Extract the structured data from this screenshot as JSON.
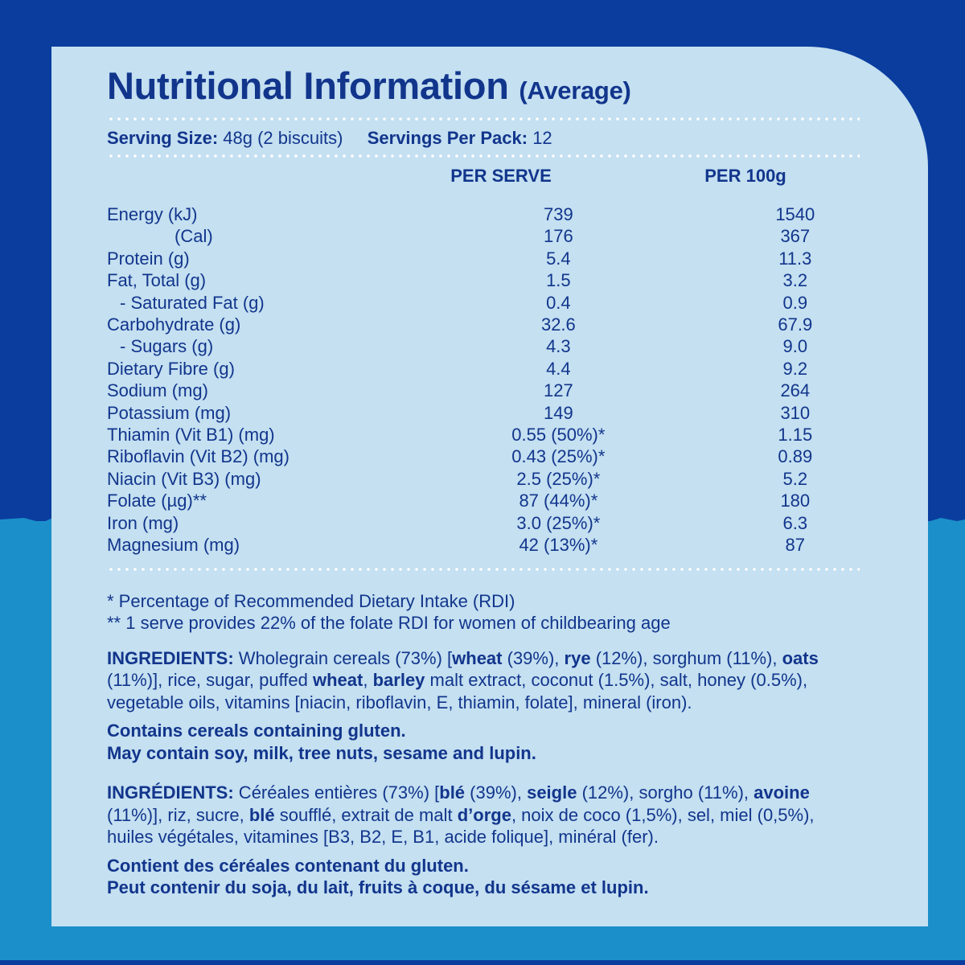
{
  "title": {
    "main": "Nutritional Information",
    "sub": "(Average)"
  },
  "serving": {
    "size_label": "Serving Size:",
    "size_value": "48g (2 biscuits)",
    "per_pack_label": "Servings Per Pack:",
    "per_pack_value": "12"
  },
  "columns": {
    "per_serve": "PER SERVE",
    "per_100g": "PER 100g"
  },
  "rows": [
    {
      "label": "Energy (kJ)",
      "per_serve": "739",
      "per_100g": "1540"
    },
    {
      "label": "(Cal)",
      "per_serve": "176",
      "per_100g": "367"
    },
    {
      "label": "Protein (g)",
      "per_serve": "5.4",
      "per_100g": "11.3"
    },
    {
      "label": "Fat, Total (g)",
      "per_serve": "1.5",
      "per_100g": "3.2"
    },
    {
      "label": "- Saturated Fat (g)",
      "per_serve": "0.4",
      "per_100g": "0.9"
    },
    {
      "label": "Carbohydrate (g)",
      "per_serve": "32.6",
      "per_100g": "67.9"
    },
    {
      "label": "- Sugars (g)",
      "per_serve": "4.3",
      "per_100g": "9.0"
    },
    {
      "label": "Dietary Fibre (g)",
      "per_serve": "4.4",
      "per_100g": "9.2"
    },
    {
      "label": "Sodium (mg)",
      "per_serve": "127",
      "per_100g": "264"
    },
    {
      "label": "Potassium (mg)",
      "per_serve": "149",
      "per_100g": "310"
    },
    {
      "label": "Thiamin (Vit B1) (mg)",
      "per_serve": "0.55 (50%)*",
      "per_100g": "1.15"
    },
    {
      "label": "Riboflavin (Vit B2) (mg)",
      "per_serve": "0.43 (25%)*",
      "per_100g": "0.89"
    },
    {
      "label": "Niacin (Vit B3) (mg)",
      "per_serve": "2.5 (25%)*",
      "per_100g": "5.2"
    },
    {
      "label": "Folate (µg)**",
      "per_serve": "87 (44%)*",
      "per_100g": "180"
    },
    {
      "label": "Iron (mg)",
      "per_serve": "3.0 (25%)*",
      "per_100g": "6.3"
    },
    {
      "label": "Magnesium (mg)",
      "per_serve": "42 (13%)*",
      "per_100g": "87"
    }
  ],
  "footnotes": [
    "* Percentage of Recommended Dietary Intake (RDI)",
    "** 1 serve provides 22% of the folate RDI for women of childbearing age"
  ],
  "ingredients_en": {
    "heading": "INGREDIENTS:",
    "t1": " Wholegrain cereals (73%) [",
    "b1": "wheat",
    "t2": " (39%), ",
    "b2": "rye",
    "t3": " (12%), sorghum (11%), ",
    "b3": "oats",
    "t4": " (11%)], rice, sugar, puffed ",
    "b4": "wheat",
    "t5": ", ",
    "b5": "barley",
    "t6": " malt extract, coconut (1.5%), salt, honey (0.5%), vegetable oils, vitamins [niacin, riboflavin, E, thiamin, folate], mineral (iron)."
  },
  "allergens_en": [
    "Contains cereals containing gluten.",
    "May contain soy, milk, tree nuts, sesame and lupin."
  ],
  "ingredients_fr": {
    "heading": "INGRÉDIENTS:",
    "t1": " Céréales entières (73%) [",
    "b1": "blé",
    "t2": " (39%), ",
    "b2": "seigle",
    "t3": " (12%), sorgho (11%), ",
    "b3": "avoine",
    "t4": " (11%)], riz, sucre, ",
    "b4": "blé",
    "t5": " soufflé, extrait de malt ",
    "b5": "d’orge",
    "t6": ", noix de coco (1,5%), sel, miel (0,5%), huiles végétales, vitamines [B3, B2, E, B1, acide folique], minéral (fer)."
  },
  "allergens_fr": [
    "Contient des céréales contenant du gluten.",
    "Peut contenir du soja, du lait, fruits à coque, du sésame et lupin."
  ],
  "colors": {
    "background_top": "#0a3d9e",
    "background_bottom": "#1b8fc9",
    "panel": "#c4e0f1",
    "text": "#12358c"
  }
}
